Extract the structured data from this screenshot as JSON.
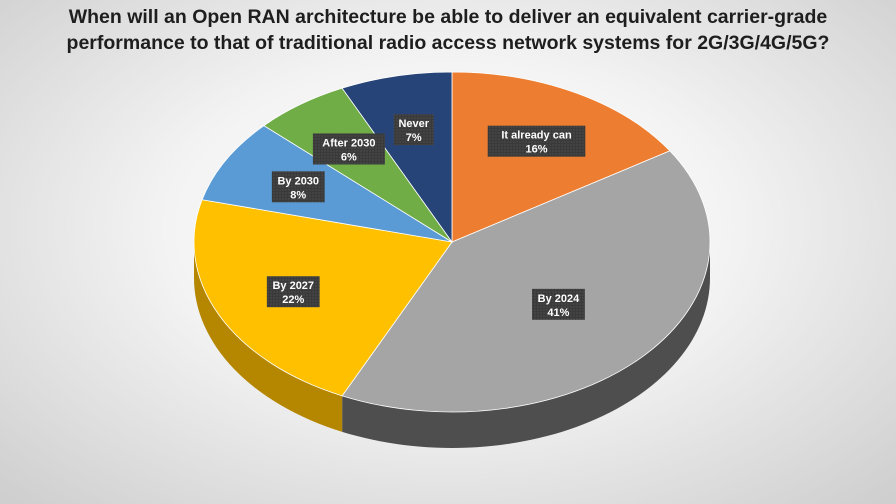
{
  "chart_data": {
    "type": "pie",
    "title_lines": [
      "When will an Open RAN architecture be able to deliver an equivalent carrier-grade",
      "performance to that of traditional radio access network systems for 2G/3G/4G/5G?"
    ],
    "slices": [
      {
        "label": "It already can",
        "percent_label": "16%",
        "value": 16,
        "color": "#ED7D31",
        "side_color": "#A9541D"
      },
      {
        "label": "By 2024",
        "percent_label": "41%",
        "value": 41,
        "color": "#A5A5A5",
        "side_color": "#4E4E4E"
      },
      {
        "label": "By 2027",
        "percent_label": "22%",
        "value": 22,
        "color": "#FFC000",
        "side_color": "#B58600"
      },
      {
        "label": "By 2030",
        "percent_label": "8%",
        "value": 8,
        "color": "#5B9BD5",
        "side_color": "#3C6E9C"
      },
      {
        "label": "After 2030",
        "percent_label": "6%",
        "value": 6,
        "color": "#70AD47",
        "side_color": "#4D7A30"
      },
      {
        "label": "Never",
        "percent_label": "7%",
        "value": 7,
        "color": "#264478",
        "side_color": "#172B4E"
      }
    ],
    "style": "3d-pie",
    "start": "top",
    "direction": "clockwise",
    "legend": "none",
    "data_labels": "label-box"
  }
}
